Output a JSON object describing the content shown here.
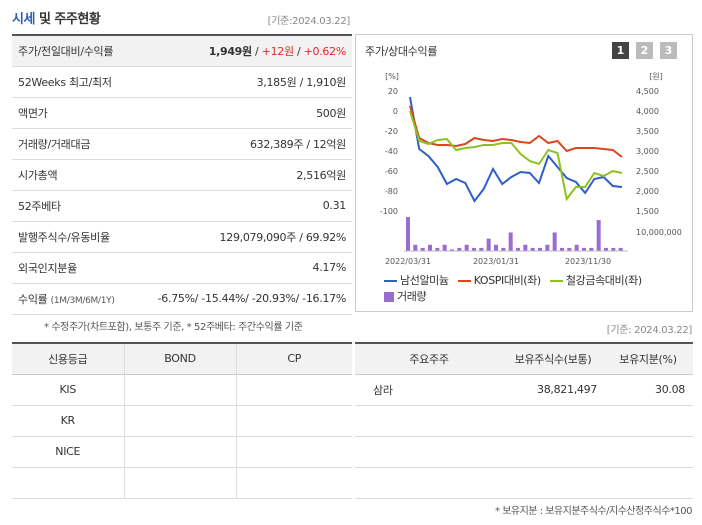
{
  "header": {
    "title_part1": "시세",
    "title_part2": " 및 주주현황",
    "date": "[기준:2024.03.22]"
  },
  "info_rows": [
    {
      "label": "주가/전일대비/수익률",
      "v1": "1,949원",
      "v2": " / ",
      "v3": "+12원",
      "v4": " / ",
      "v5": "+0.62%"
    },
    {
      "label": "52Weeks 최고/최저",
      "value": "3,185원 / 1,910원"
    },
    {
      "label": "액면가",
      "value": "500원"
    },
    {
      "label": "거래량/거래대금",
      "value": "632,389주 / 12억원"
    },
    {
      "label": "시가총액",
      "value": "2,516억원"
    },
    {
      "label": "52주베타",
      "value": "0.31"
    },
    {
      "label": "발행주식수/유동비율",
      "value": "129,079,090주 / 69.92%"
    },
    {
      "label": "외국인지분율",
      "value": "4.17%"
    },
    {
      "label": "수익률",
      "label_small": "(1M/3M/6M/1Y)",
      "value": "-6.75%/ -15.44%/ -20.93%/ -16.17%"
    }
  ],
  "note1": "* 수정주가(차트포함), 보통주 기준, * 52주베타: 주간수익률 기준",
  "chart_panel": {
    "title": "주가/상대수익률",
    "pages": [
      "1",
      "2",
      "3"
    ],
    "legend": {
      "s1": "남선알미늄",
      "s2": "KOSPI대비(좌)",
      "s3": "철강금속대비(좌)",
      "s4": "거래량"
    }
  },
  "chart_data": {
    "type": "line",
    "left_axis_unit": "[%]",
    "right_axis_unit": "[원]",
    "left_ticks": [
      "20",
      "0",
      "-20",
      "-40",
      "-60",
      "-80",
      "-100"
    ],
    "right_ticks": [
      "4,500",
      "4,000",
      "3,500",
      "3,000",
      "2,500",
      "2,000",
      "1,500"
    ],
    "volume_tick": "10,000,000",
    "x_labels": [
      "2022/03/31",
      "2023/01/31",
      "2023/11/30"
    ],
    "ylim_left": [
      -100,
      20
    ],
    "series": [
      {
        "name": "남선알미늄",
        "color": "#2e5fc6",
        "values": [
          14,
          -38,
          -45,
          -56,
          -73,
          -68,
          -72,
          -90,
          -78,
          -58,
          -73,
          -66,
          -61,
          -62,
          -72,
          -45,
          -56,
          -67,
          -71,
          -82,
          -68,
          -66,
          -75,
          -76
        ]
      },
      {
        "name": "KOSPI대비(좌)",
        "color": "#d9471c",
        "values": [
          5,
          -27,
          -32,
          -34,
          -34,
          -35,
          -33,
          -27,
          -29,
          -30,
          -28,
          -29,
          -31,
          -32,
          -25,
          -32,
          -30,
          -40,
          -37,
          -37,
          -37,
          -38,
          -39,
          -46
        ]
      },
      {
        "name": "철강금속대비(좌)",
        "color": "#8cc21e",
        "values": [
          0,
          -30,
          -33,
          -29,
          -28,
          -39,
          -37,
          -36,
          -34,
          -34,
          -32,
          -32,
          -43,
          -50,
          -53,
          -39,
          -42,
          -88,
          -76,
          -76,
          -62,
          -65,
          -60,
          -62
        ]
      }
    ],
    "volume": [
      11,
      2,
      1,
      2,
      1,
      2,
      0.5,
      1,
      2,
      1,
      1,
      4,
      2,
      1,
      6,
      1,
      2,
      1,
      1,
      2,
      6,
      1,
      1,
      2,
      1,
      1,
      10,
      1,
      1,
      1
    ],
    "volume_color": "#9a6bd0"
  },
  "date2": "[기준: 2024.03.22]",
  "credit": {
    "headers": [
      "신용등급",
      "BOND",
      "CP"
    ],
    "rows": [
      [
        "KIS",
        "",
        ""
      ],
      [
        "KR",
        "",
        ""
      ],
      [
        "NICE",
        "",
        ""
      ],
      [
        "",
        "",
        ""
      ]
    ]
  },
  "holders": {
    "headers": [
      "주요주주",
      "보유주식수(보통)",
      "보유지분(%)"
    ],
    "rows": [
      [
        "삼라",
        "38,821,497",
        "30.08"
      ],
      [
        "",
        "",
        ""
      ],
      [
        "",
        "",
        ""
      ],
      [
        "",
        "",
        ""
      ]
    ]
  },
  "note2": "* 보유지분 : 보유지분주식수/지수산정주식수*100"
}
